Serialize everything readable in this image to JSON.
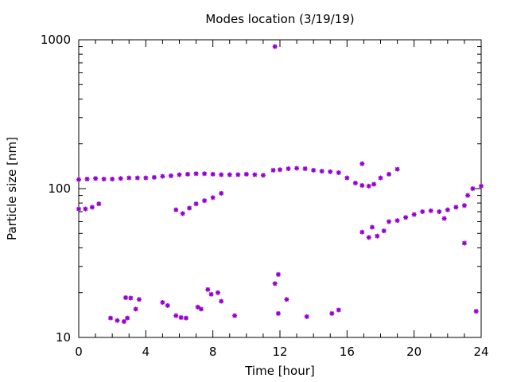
{
  "chart_data": {
    "type": "scatter",
    "title": "Modes location (3/19/19)",
    "xlabel": "Time [hour]",
    "ylabel": "Particle size [nm]",
    "xlim": [
      0,
      24
    ],
    "ylim": [
      10,
      1000
    ],
    "yscale": "log",
    "x_ticks": [
      "0",
      "4",
      "8",
      "12",
      "16",
      "20",
      "24"
    ],
    "y_ticks": [
      "10",
      "100",
      "1000"
    ],
    "grid": false,
    "legend": "none",
    "marker_color": "#9400d3",
    "marker": "star",
    "series": [
      {
        "points": [
          [
            0.0,
            115
          ],
          [
            0.5,
            116
          ],
          [
            1.0,
            117
          ],
          [
            1.5,
            116
          ],
          [
            2.0,
            116
          ],
          [
            2.5,
            117
          ],
          [
            3.0,
            118
          ],
          [
            3.5,
            118
          ],
          [
            4.0,
            118
          ],
          [
            4.5,
            119
          ],
          [
            5.0,
            121
          ],
          [
            5.5,
            122
          ],
          [
            6.0,
            124
          ],
          [
            6.5,
            125
          ],
          [
            7.0,
            126
          ],
          [
            7.5,
            126
          ],
          [
            8.0,
            125
          ],
          [
            8.5,
            124
          ],
          [
            9.0,
            124
          ],
          [
            9.5,
            124
          ],
          [
            10.0,
            125
          ],
          [
            10.5,
            124
          ],
          [
            11.0,
            123
          ],
          [
            11.6,
            133
          ],
          [
            12.0,
            134
          ],
          [
            12.5,
            136
          ],
          [
            13.0,
            137
          ],
          [
            13.5,
            136
          ],
          [
            14.0,
            133
          ],
          [
            14.5,
            131
          ],
          [
            15.0,
            130
          ],
          [
            15.5,
            128
          ],
          [
            16.0,
            118
          ],
          [
            16.5,
            109
          ],
          [
            16.9,
            105
          ],
          [
            17.3,
            104
          ],
          [
            17.6,
            107
          ],
          [
            18.0,
            118
          ],
          [
            18.5,
            125
          ],
          [
            19.0,
            135
          ],
          [
            16.9,
            147
          ],
          [
            0.0,
            73
          ],
          [
            0.4,
            73
          ],
          [
            0.8,
            75
          ],
          [
            1.2,
            79
          ],
          [
            5.8,
            72
          ],
          [
            6.2,
            68
          ],
          [
            6.6,
            74
          ],
          [
            7.0,
            79
          ],
          [
            7.5,
            83
          ],
          [
            8.0,
            87
          ],
          [
            8.5,
            93
          ],
          [
            16.9,
            51
          ],
          [
            17.3,
            47
          ],
          [
            17.5,
            55
          ],
          [
            17.8,
            48
          ],
          [
            18.2,
            52
          ],
          [
            18.5,
            60
          ],
          [
            19.0,
            61
          ],
          [
            19.5,
            64
          ],
          [
            20.0,
            67
          ],
          [
            20.5,
            70
          ],
          [
            21.0,
            71
          ],
          [
            21.5,
            70
          ],
          [
            22.0,
            72
          ],
          [
            22.5,
            75
          ],
          [
            23.0,
            77
          ],
          [
            23.2,
            90
          ],
          [
            23.5,
            100
          ],
          [
            24.0,
            104
          ],
          [
            21.8,
            63
          ],
          [
            23.0,
            43
          ],
          [
            11.7,
            900
          ],
          [
            1.9,
            13.5
          ],
          [
            2.3,
            13
          ],
          [
            2.7,
            12.8
          ],
          [
            2.9,
            13.5
          ],
          [
            2.8,
            18.5
          ],
          [
            3.1,
            18.4
          ],
          [
            3.4,
            15.5
          ],
          [
            3.6,
            18
          ],
          [
            5.0,
            17.2
          ],
          [
            5.3,
            16.4
          ],
          [
            5.8,
            14
          ],
          [
            6.1,
            13.6
          ],
          [
            6.4,
            13.5
          ],
          [
            7.1,
            16
          ],
          [
            7.3,
            15.5
          ],
          [
            7.7,
            21
          ],
          [
            7.9,
            19.5
          ],
          [
            8.3,
            20
          ],
          [
            8.5,
            17.5
          ],
          [
            9.3,
            14
          ],
          [
            11.7,
            23
          ],
          [
            11.9,
            26.5
          ],
          [
            11.9,
            14.5
          ],
          [
            12.4,
            18
          ],
          [
            13.6,
            13.8
          ],
          [
            15.1,
            14.5
          ],
          [
            15.5,
            15.3
          ],
          [
            23.7,
            15
          ]
        ]
      }
    ]
  }
}
